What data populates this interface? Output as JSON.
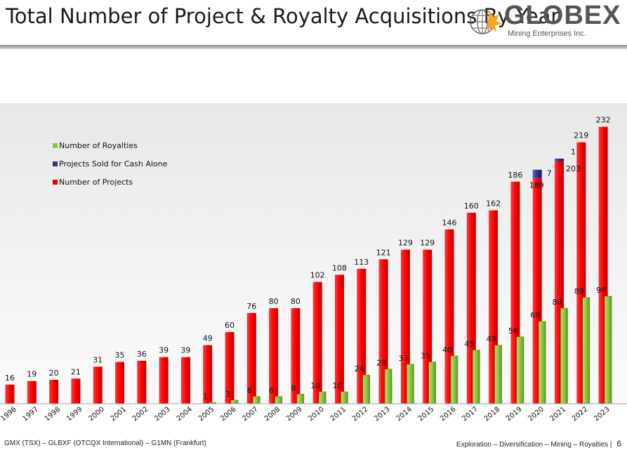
{
  "header": {
    "title": "Total Number of Project & Royalty Acquisitions By Year",
    "logo_name": "GLOBEX",
    "logo_sub": "Mining Enterprises Inc."
  },
  "footer": {
    "left": "GMX (TSX) – GLBXF (OTCQX International) – G1MN (Frankfurt)",
    "right": "Exploration – Diversification – Mining – Royalties",
    "separator": "|",
    "page_number": "6"
  },
  "colors": {
    "projects": "#ee0000",
    "royalties": "#8dc63f",
    "sold": "#2e3192"
  },
  "chart_data": {
    "type": "bar",
    "stacked": false,
    "title": "Total Number of Project & Royalty Acquisitions By Year",
    "categories": [
      "1996",
      "1997",
      "1998",
      "1999",
      "2000",
      "2001",
      "2002",
      "2003",
      "2004",
      "2005",
      "2006",
      "2007",
      "2008",
      "2009",
      "2010",
      "2011",
      "2012",
      "2013",
      "2014",
      "2015",
      "2016",
      "2017",
      "2018",
      "2019",
      "2020",
      "2021",
      "2022",
      "2023"
    ],
    "legend": [
      "Number of Royalties",
      "Projects Sold for Cash Alone",
      "Number of Projects"
    ],
    "legend_position": "top-left",
    "series": [
      {
        "name": "Number of Projects",
        "values": [
          16,
          19,
          20,
          21,
          31,
          35,
          36,
          39,
          39,
          49,
          60,
          76,
          80,
          80,
          102,
          108,
          113,
          121,
          129,
          129,
          146,
          160,
          162,
          186,
          189,
          203,
          219,
          232
        ]
      },
      {
        "name": "Projects Sold for Cash Alone",
        "values": [
          null,
          null,
          null,
          null,
          null,
          null,
          null,
          null,
          null,
          null,
          null,
          null,
          null,
          null,
          null,
          null,
          null,
          null,
          null,
          null,
          null,
          null,
          null,
          null,
          7,
          1,
          null,
          null
        ]
      },
      {
        "name": "Number of Royalties",
        "values": [
          null,
          null,
          null,
          null,
          null,
          null,
          null,
          null,
          null,
          1,
          3,
          6,
          6,
          8,
          10,
          10,
          24,
          29,
          33,
          35,
          40,
          45,
          49,
          56,
          69,
          80,
          89,
          90
        ]
      }
    ],
    "ylim": [
      0,
      240
    ],
    "grid": false
  }
}
